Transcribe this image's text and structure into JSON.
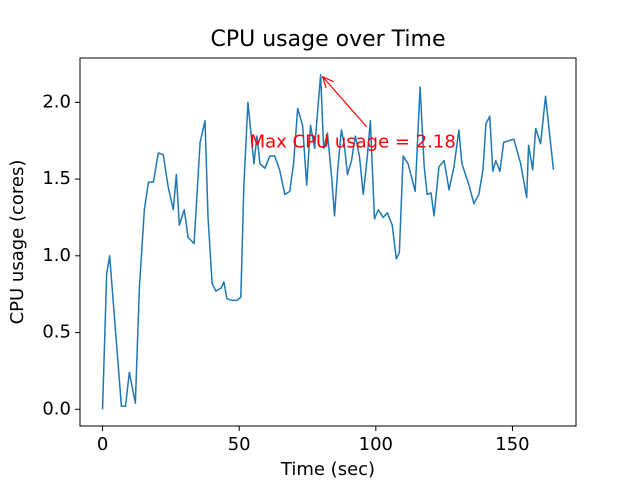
{
  "chart_data": {
    "type": "line",
    "title": "CPU usage over Time",
    "xlabel": "Time (sec)",
    "ylabel": "CPU usage (cores)",
    "x": [
      0,
      1.5,
      2.6,
      6.9,
      8.4,
      9.8,
      12.0,
      13.5,
      15.3,
      16.8,
      18.6,
      20.4,
      22.2,
      24.0,
      25.9,
      27.0,
      28.1,
      29.9,
      31.3,
      33.5,
      35.7,
      37.5,
      38.6,
      40.1,
      41.5,
      43.4,
      44.4,
      45.5,
      47.4,
      49.2,
      50.6,
      51.7,
      53.2,
      55.4,
      56.5,
      57.6,
      59.4,
      61.2,
      63.0,
      64.8,
      66.7,
      68.5,
      69.9,
      71.4,
      73.2,
      74.7,
      76.1,
      77.6,
      79.8,
      80.9,
      82.3,
      83.8,
      84.9,
      86.0,
      87.4,
      88.5,
      89.6,
      91.1,
      92.5,
      94.0,
      95.4,
      96.9,
      98.0,
      99.5,
      100.9,
      102.7,
      104.2,
      106.0,
      107.5,
      108.6,
      110.0,
      111.8,
      114.4,
      116.2,
      117.7,
      118.8,
      120.2,
      121.3,
      123.1,
      125.0,
      126.8,
      128.6,
      130.4,
      131.5,
      134.1,
      135.9,
      137.7,
      139.2,
      140.3,
      141.7,
      142.8,
      143.9,
      145.4,
      146.8,
      148.6,
      150.5,
      153.0,
      155.2,
      155.9,
      157.4,
      158.5,
      160.3,
      162.1,
      165
    ],
    "series": [
      {
        "name": "CPU usage",
        "color": "#1f77b4",
        "values": [
          0.0,
          0.88,
          1.0,
          0.02,
          0.02,
          0.24,
          0.04,
          0.8,
          1.3,
          1.48,
          1.48,
          1.67,
          1.66,
          1.45,
          1.3,
          1.53,
          1.2,
          1.3,
          1.12,
          1.08,
          1.74,
          1.88,
          1.25,
          0.82,
          0.77,
          0.79,
          0.83,
          0.72,
          0.71,
          0.71,
          0.73,
          1.45,
          2.0,
          1.6,
          1.78,
          1.6,
          1.57,
          1.65,
          1.65,
          1.56,
          1.4,
          1.42,
          1.6,
          1.96,
          1.85,
          1.46,
          1.85,
          1.7,
          2.18,
          1.7,
          1.8,
          1.52,
          1.26,
          1.55,
          1.82,
          1.72,
          1.53,
          1.62,
          1.78,
          1.65,
          1.4,
          1.65,
          1.88,
          1.24,
          1.3,
          1.25,
          1.28,
          1.2,
          0.98,
          1.02,
          1.65,
          1.6,
          1.42,
          2.1,
          1.58,
          1.4,
          1.41,
          1.26,
          1.58,
          1.62,
          1.43,
          1.58,
          1.82,
          1.6,
          1.46,
          1.34,
          1.4,
          1.56,
          1.86,
          1.91,
          1.55,
          1.62,
          1.55,
          1.74,
          1.75,
          1.76,
          1.6,
          1.38,
          1.72,
          1.56,
          1.83,
          1.73,
          2.04,
          1.56
        ]
      }
    ],
    "xlim": [
      -8.25,
      173.25
    ],
    "ylim": [
      -0.109,
      2.289
    ],
    "xticks": [
      0,
      50,
      100,
      150
    ],
    "yticks": [
      {
        "value": 0,
        "label": "0.0"
      },
      0.5,
      {
        "value": 1,
        "label": "1.0"
      },
      1.5,
      {
        "value": 2,
        "label": "2.0"
      }
    ],
    "annotation": {
      "text": "Max CPU usage = 2.18",
      "x": 79.8,
      "y": 2.18,
      "color": "red"
    }
  }
}
